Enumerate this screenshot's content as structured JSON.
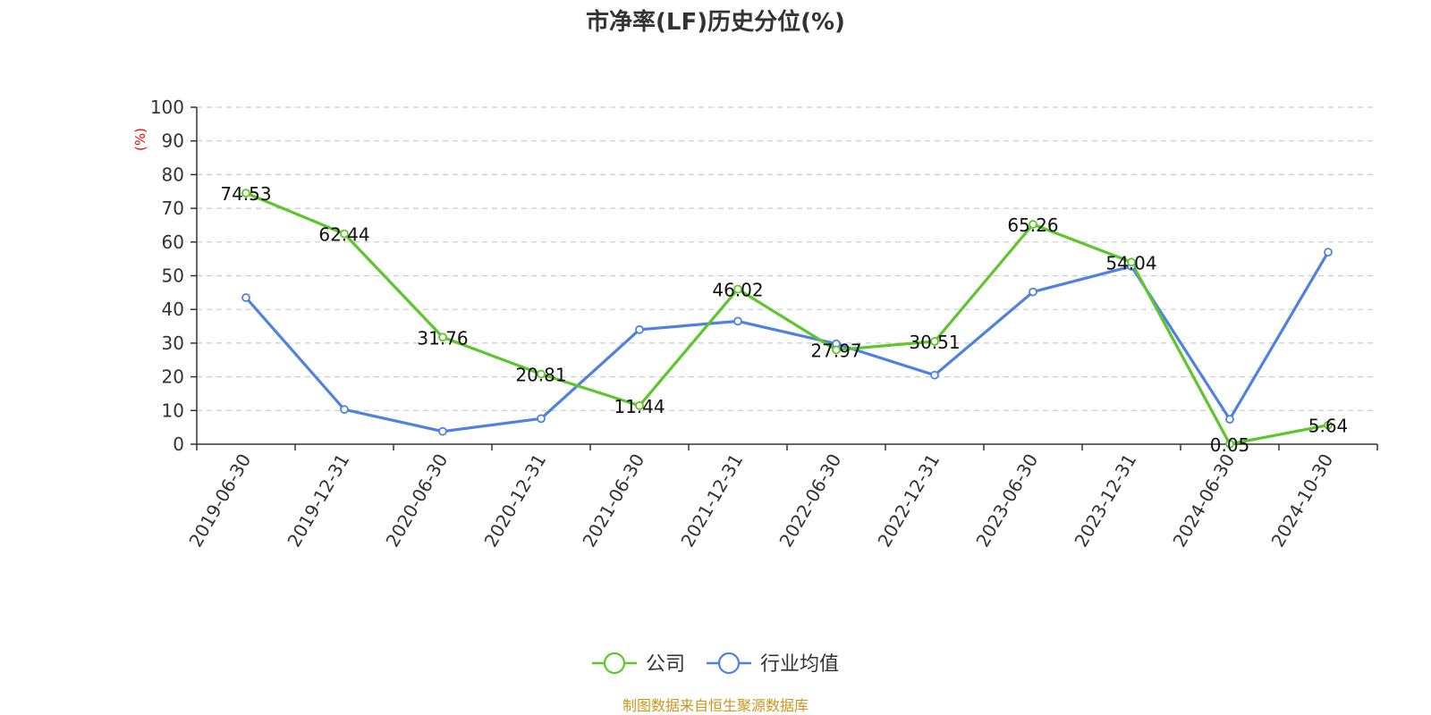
{
  "chart_data": {
    "type": "line",
    "title": "市净率(LF)历史分位(%)",
    "unit_label": "(%)",
    "source": "制图数据来自恒生聚源数据库",
    "categories": [
      "2019-06-30",
      "2019-12-31",
      "2020-06-30",
      "2020-12-31",
      "2021-06-30",
      "2021-12-31",
      "2022-06-30",
      "2022-12-31",
      "2023-06-30",
      "2023-12-31",
      "2024-06-30",
      "2024-10-30"
    ],
    "ylim": [
      0,
      100
    ],
    "y_ticks": [
      0,
      10,
      20,
      30,
      40,
      50,
      60,
      70,
      80,
      90,
      100
    ],
    "grid": true,
    "legend_position": "bottom",
    "series": [
      {
        "name": "公司",
        "color": "#5cc62b",
        "show_labels": true,
        "values": [
          74.53,
          62.44,
          31.76,
          20.81,
          11.44,
          46.02,
          27.97,
          30.51,
          65.26,
          54.04,
          0.05,
          5.64
        ],
        "labels": [
          "74.53",
          "62.44",
          "31.76",
          "20.81",
          "11.44",
          "46.02",
          "27.97",
          "30.51",
          "65.26",
          "54.04",
          "0.05",
          "5.64"
        ]
      },
      {
        "name": "行业均值",
        "color": "#4f82e0",
        "show_labels": false,
        "values": [
          43.5,
          10.3,
          3.8,
          7.6,
          34.0,
          36.5,
          29.8,
          20.5,
          45.2,
          52.8,
          7.4,
          57.0
        ]
      }
    ]
  }
}
